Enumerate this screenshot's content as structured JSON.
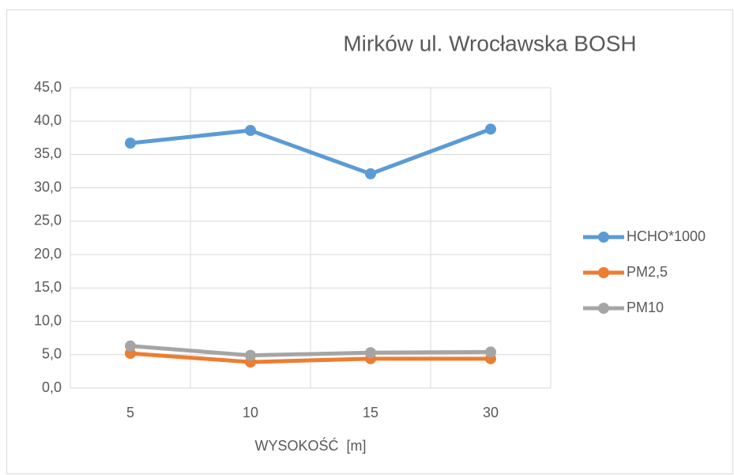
{
  "chart_data": {
    "type": "line",
    "title": "Mirków ul. Wrocławska BOSH",
    "x_label": "WYSOKOŚĆ  [m]",
    "categories": [
      "5",
      "10",
      "15",
      "30"
    ],
    "series": [
      {
        "name": "HCHO*1000",
        "color": "#5b9bd5",
        "values": [
          36.7,
          38.6,
          32.1,
          38.8
        ]
      },
      {
        "name": "PM2,5",
        "color": "#ed7d31",
        "values": [
          5.2,
          3.9,
          4.4,
          4.4
        ]
      },
      {
        "name": "PM10",
        "color": "#a5a5a5",
        "values": [
          6.3,
          4.9,
          5.3,
          5.4
        ]
      }
    ],
    "ylim": [
      0,
      45
    ],
    "yticks": [
      {
        "value": 0,
        "label": "0,0"
      },
      {
        "value": 5,
        "label": "5,0"
      },
      {
        "value": 10,
        "label": "10,0"
      },
      {
        "value": 15,
        "label": "15,0"
      },
      {
        "value": 20,
        "label": "20,0"
      },
      {
        "value": 25,
        "label": "25,0"
      },
      {
        "value": 30,
        "label": "30,0"
      },
      {
        "value": 35,
        "label": "35,0"
      },
      {
        "value": 40,
        "label": "40,0"
      },
      {
        "value": 45,
        "label": "45,0"
      }
    ],
    "grid": true,
    "legend": "right"
  }
}
